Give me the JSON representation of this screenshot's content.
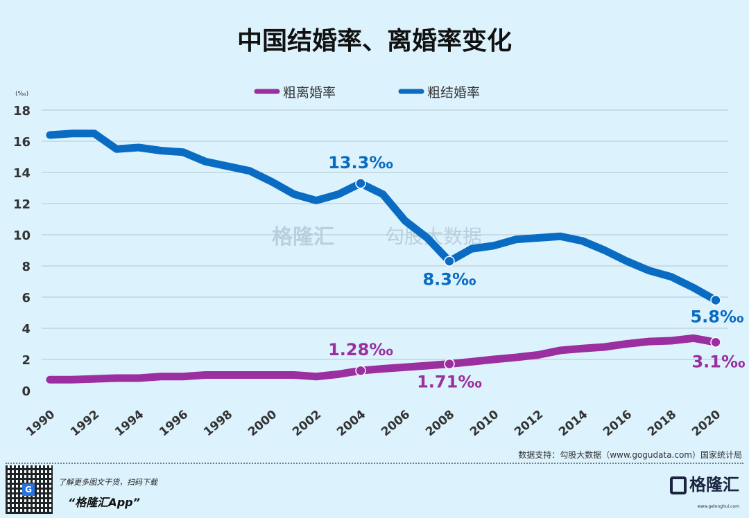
{
  "chart_data": {
    "type": "line",
    "title": "中国结婚率、离婚率变化",
    "ylabel": "(‰)",
    "ylim": [
      0,
      18
    ],
    "yticks": [
      0,
      2,
      4,
      6,
      8,
      10,
      12,
      14,
      16,
      18
    ],
    "x": [
      1990,
      1991,
      1992,
      1993,
      1994,
      1995,
      1996,
      1997,
      1998,
      1999,
      2000,
      2001,
      2002,
      2003,
      2004,
      2005,
      2006,
      2007,
      2008,
      2009,
      2010,
      2011,
      2012,
      2013,
      2014,
      2015,
      2016,
      2017,
      2018,
      2019,
      2020
    ],
    "xticks": [
      "1990",
      "1992",
      "1994",
      "1996",
      "1998",
      "2000",
      "2002",
      "2004",
      "2006",
      "2008",
      "2010",
      "2012",
      "2014",
      "2016",
      "2018",
      "2020"
    ],
    "grid": true,
    "legend_position": "top-center",
    "series": [
      {
        "name": "粗离婚率",
        "color": "#9b2fa0",
        "values": [
          0.7,
          0.7,
          0.75,
          0.8,
          0.8,
          0.9,
          0.9,
          1.0,
          1.0,
          1.0,
          1.0,
          1.0,
          0.9,
          1.05,
          1.28,
          1.4,
          1.5,
          1.6,
          1.71,
          1.85,
          2.0,
          2.13,
          2.29,
          2.58,
          2.7,
          2.8,
          3.0,
          3.15,
          3.2,
          3.36,
          3.1
        ],
        "annotations": [
          {
            "year": 2004,
            "label": "1.28‰"
          },
          {
            "year": 2008,
            "label": "1.71‰"
          },
          {
            "year": 2020,
            "label": "3.1‰"
          }
        ]
      },
      {
        "name": "粗结婚率",
        "color": "#0a6bc2",
        "values": [
          16.4,
          16.5,
          16.5,
          15.5,
          15.6,
          15.4,
          15.3,
          14.7,
          14.4,
          14.1,
          13.4,
          12.6,
          12.2,
          12.6,
          13.3,
          12.6,
          10.9,
          9.8,
          8.3,
          9.1,
          9.3,
          9.7,
          9.8,
          9.9,
          9.6,
          9.0,
          8.3,
          7.7,
          7.3,
          6.6,
          5.8
        ],
        "annotations": [
          {
            "year": 2004,
            "label": "13.3‰"
          },
          {
            "year": 2008,
            "label": "8.3‰"
          },
          {
            "year": 2020,
            "label": "5.8‰"
          }
        ]
      }
    ]
  },
  "watermark": {
    "brand": "格隆汇",
    "site": "www.gelonghui.com",
    "brand2": "勾股大数据",
    "site2": "www.gogudata.com"
  },
  "footer": {
    "source": "数据支持：勾股大数据（www.gogudata.com）国家统计局",
    "promo": "了解更多图文干货，扫码下载",
    "app": "“格隆汇App”",
    "logo": "格隆汇",
    "logo_url": "www.gelonghui.com"
  }
}
